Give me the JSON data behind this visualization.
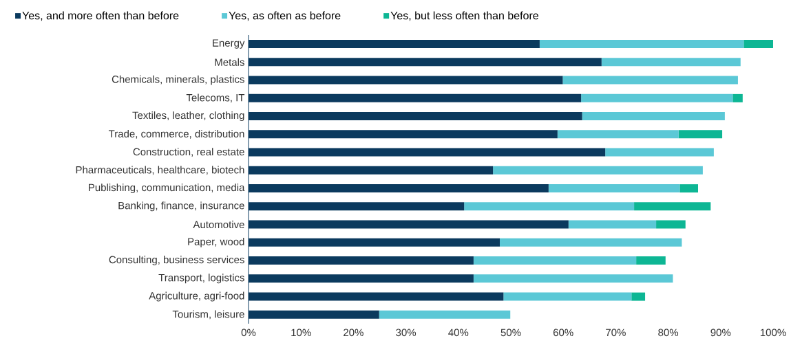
{
  "chart_data": {
    "type": "bar",
    "orientation": "horizontal",
    "stacked": true,
    "categories": [
      "Energy",
      "Metals",
      "Chemicals, minerals, plastics",
      "Telecoms, IT",
      "Textiles, leather, clothing",
      "Trade, commerce, distribution",
      "Construction, real estate",
      "Pharmaceuticals, healthcare, biotech",
      "Publishing, communication, media",
      "Banking, finance, insurance",
      "Automotive",
      "Paper, wood",
      "Consulting, business services",
      "Transport, logistics",
      "Agriculture, agri-food",
      "Tourism, leisure"
    ],
    "series": [
      {
        "name": "Yes, and more often than before",
        "color": "#0b3a5e",
        "values": [
          55.5,
          67.3,
          59.9,
          63.4,
          63.6,
          58.9,
          68.0,
          46.6,
          57.2,
          41.1,
          61.0,
          47.9,
          42.9,
          42.9,
          48.6,
          24.9
        ]
      },
      {
        "name": "Yes, as often as before",
        "color": "#5bc8d6",
        "values": [
          38.9,
          26.5,
          33.4,
          28.9,
          27.2,
          23.1,
          20.7,
          40.0,
          25.0,
          32.4,
          16.7,
          34.7,
          31.0,
          38.0,
          24.4,
          25.0
        ]
      },
      {
        "name": "Yes, but less often than before",
        "color": "#0db694",
        "values": [
          5.6,
          null,
          null,
          1.9,
          null,
          8.3,
          null,
          null,
          3.5,
          14.6,
          5.6,
          null,
          5.6,
          null,
          2.6,
          null
        ]
      }
    ],
    "xlim": [
      0,
      100
    ],
    "xticks": [
      {
        "value": 0,
        "label": "0%"
      },
      {
        "value": 10,
        "label": "10%"
      },
      {
        "value": 20,
        "label": "20%"
      },
      {
        "value": 30,
        "label": "30%"
      },
      {
        "value": 40,
        "label": "40%"
      },
      {
        "value": 50,
        "label": "50%"
      },
      {
        "value": 60,
        "label": "60%"
      },
      {
        "value": 70,
        "label": "70%"
      },
      {
        "value": 80,
        "label": "80%"
      },
      {
        "value": 90,
        "label": "90%"
      },
      {
        "value": 100,
        "label": "100%"
      }
    ],
    "legend": "top left",
    "grid": false
  }
}
